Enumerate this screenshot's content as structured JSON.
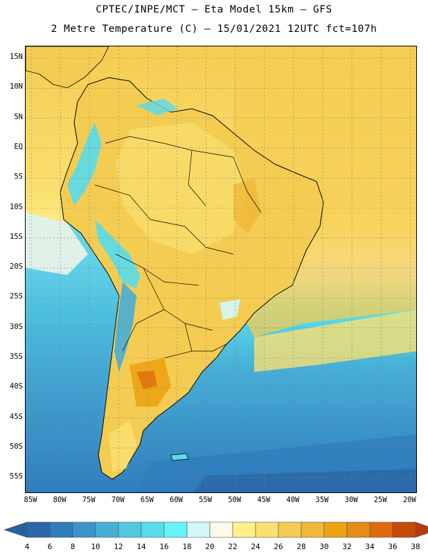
{
  "header": {
    "line1": "CPTEC/INPE/MCT –  Eta Model 15km – GFS",
    "line2": "2 Metre Temperature (C) – 15/01/2021 12UTC fct=107h"
  },
  "map": {
    "lat_labels": [
      "15N",
      "10N",
      "5N",
      "EQ",
      "5S",
      "10S",
      "15S",
      "20S",
      "25S",
      "30S",
      "35S",
      "40S",
      "45S",
      "50S",
      "55S"
    ],
    "lon_labels": [
      "85W",
      "80W",
      "75W",
      "70W",
      "65W",
      "60W",
      "55W",
      "50W",
      "45W",
      "40W",
      "35W",
      "30W",
      "25W",
      "20W"
    ]
  },
  "colorbar": {
    "labels": [
      "4",
      "6",
      "8",
      "10",
      "12",
      "14",
      "16",
      "18",
      "20",
      "22",
      "24",
      "26",
      "28",
      "30",
      "32",
      "34",
      "36",
      "38"
    ],
    "colors": [
      "#2a66a8",
      "#2f7cbc",
      "#3b95c8",
      "#47aed6",
      "#50c8e0",
      "#58dcec",
      "#66f4fa",
      "#d2f8fc",
      "#fff8e8",
      "#fff08c",
      "#fae070",
      "#f5cc52",
      "#f0b83a",
      "#eca414",
      "#e68a18",
      "#de6a10",
      "#c84a06"
    ],
    "under_color": "#2560a0",
    "over_color": "#b43c0a"
  }
}
